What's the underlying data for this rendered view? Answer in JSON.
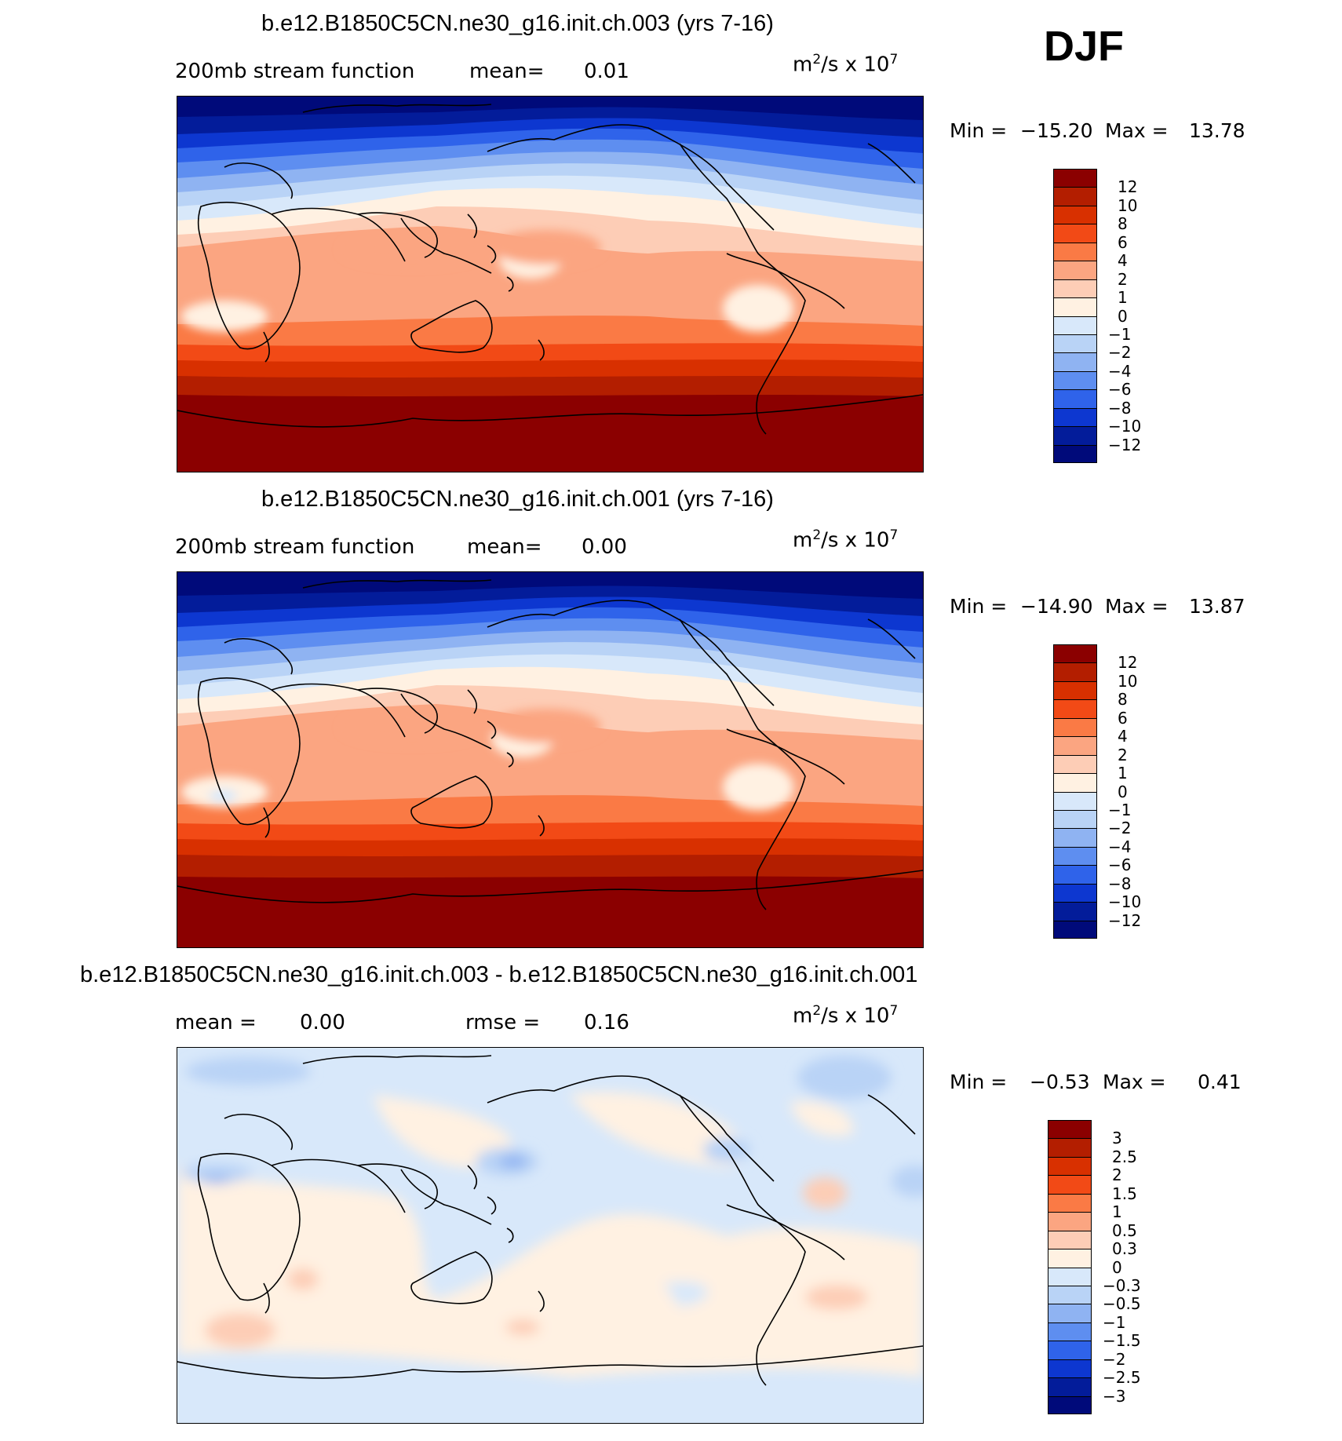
{
  "season": "DJF",
  "panels": [
    {
      "title": "b.e12.B1850C5CN.ne30_g16.init.ch.003 (yrs 7-16)",
      "left_label": "200mb stream function",
      "stat_label": "mean=",
      "stat_value": "0.01",
      "unit_base": "m",
      "unit_exp": "2",
      "unit_rest": "/s x 10",
      "unit_exp2": "7",
      "min_label": "Min =",
      "min_value": "−15.20",
      "max_label": "Max =",
      "max_value": "13.78",
      "colorbar_labels": [
        "12",
        "10",
        "8",
        "6",
        "4",
        "2",
        "1",
        "0",
        "−1",
        "−2",
        "−4",
        "−6",
        "−8",
        "−10",
        "−12"
      ],
      "colorbar_colors": [
        "#8b0000",
        "#b31e00",
        "#d83000",
        "#f24a16",
        "#fa7a45",
        "#fba581",
        "#fdcdb6",
        "#fff1e2",
        "#d8e8fa",
        "#b9d3f6",
        "#8fb3f2",
        "#5e8ef0",
        "#2f63ea",
        "#0d37d0",
        "#031c9a",
        "#000a7a"
      ]
    },
    {
      "title": "b.e12.B1850C5CN.ne30_g16.init.ch.001 (yrs 7-16)",
      "left_label": "200mb stream function",
      "stat_label": "mean=",
      "stat_value": "0.00",
      "unit_base": "m",
      "unit_exp": "2",
      "unit_rest": "/s x 10",
      "unit_exp2": "7",
      "min_label": "Min =",
      "min_value": "−14.90",
      "max_label": "Max =",
      "max_value": "13.87",
      "colorbar_labels": [
        "12",
        "10",
        "8",
        "6",
        "4",
        "2",
        "1",
        "0",
        "−1",
        "−2",
        "−4",
        "−6",
        "−8",
        "−10",
        "−12"
      ],
      "colorbar_colors": [
        "#8b0000",
        "#b31e00",
        "#d83000",
        "#f24a16",
        "#fa7a45",
        "#fba581",
        "#fdcdb6",
        "#fff1e2",
        "#d8e8fa",
        "#b9d3f6",
        "#8fb3f2",
        "#5e8ef0",
        "#2f63ea",
        "#0d37d0",
        "#031c9a",
        "#000a7a"
      ]
    },
    {
      "title": "b.e12.B1850C5CN.ne30_g16.init.ch.003 - b.e12.B1850C5CN.ne30_g16.init.ch.001",
      "left_label": "mean =",
      "left_value": "0.00",
      "stat_label": "rmse =",
      "stat_value": "0.16",
      "unit_base": "m",
      "unit_exp": "2",
      "unit_rest": "/s x 10",
      "unit_exp2": "7",
      "min_label": "Min =",
      "min_value": "−0.53",
      "max_label": "Max =",
      "max_value": "0.41",
      "colorbar_labels": [
        "3",
        "2.5",
        "2",
        "1.5",
        "1",
        "0.5",
        "0.3",
        "0",
        "−0.3",
        "−0.5",
        "−1",
        "−1.5",
        "−2",
        "−2.5",
        "−3"
      ],
      "colorbar_colors": [
        "#8b0000",
        "#b31e00",
        "#d83000",
        "#f24a16",
        "#fa7a45",
        "#fba581",
        "#fdcdb6",
        "#fff1e2",
        "#d8e8fa",
        "#b9d3f6",
        "#8fb3f2",
        "#5e8ef0",
        "#2f63ea",
        "#0d37d0",
        "#031c9a",
        "#000a7a"
      ]
    }
  ]
}
